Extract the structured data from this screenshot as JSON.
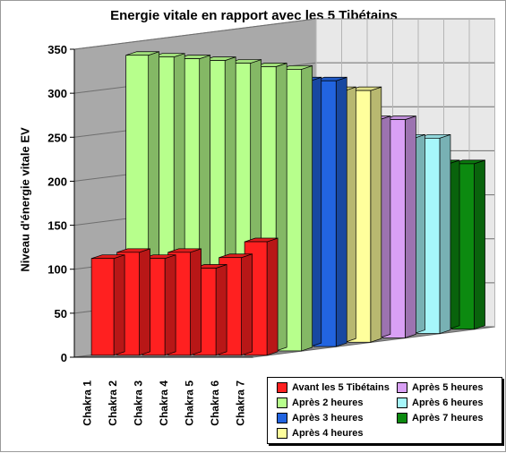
{
  "chart_data": {
    "type": "bar",
    "title": "Energie vitale en rapport avec les 5 Tibétains",
    "ylabel": "Niveau d'énergie vitale EV",
    "xlabel": "",
    "ylim": [
      0,
      350
    ],
    "yticks": [
      0,
      50,
      100,
      150,
      200,
      250,
      300,
      350
    ],
    "grid": true,
    "three_d": true,
    "legend_position": "bottom-right",
    "categories": [
      "Chakra 1",
      "Chakra 2",
      "Chakra 3",
      "Chakra 4",
      "Chakra 5",
      "Chakra 6",
      "Chakra 7"
    ],
    "series": [
      {
        "name": "Avant  les 5 Tibétains",
        "color": "#ff2020",
        "values": [
          110,
          117,
          110,
          117,
          99,
          111,
          129
        ]
      },
      {
        "name": "Après 2 heures",
        "color": "#b7ff8c",
        "values": [
          336,
          334,
          332,
          330,
          327,
          323,
          320
        ]
      },
      {
        "name": "Après 3 heures",
        "color": "#2264e0",
        "values": [
          302,
          302,
          302,
          302,
          302,
          302,
          302
        ]
      },
      {
        "name": "Après 4 heures",
        "color": "#ffff9c",
        "values": [
          286,
          286,
          286,
          286,
          286,
          286,
          286
        ]
      },
      {
        "name": "Après 5 heures",
        "color": "#d9a0f5",
        "values": [
          248,
          248,
          248,
          248,
          248,
          248,
          248
        ]
      },
      {
        "name": "Après 6 heures",
        "color": "#a6f6fa",
        "values": [
          222,
          222,
          222,
          222,
          222,
          222,
          222
        ]
      },
      {
        "name": "Après 7 heures",
        "color": "#0c8a10",
        "values": [
          188,
          188,
          188,
          188,
          188,
          188,
          188
        ]
      }
    ]
  }
}
